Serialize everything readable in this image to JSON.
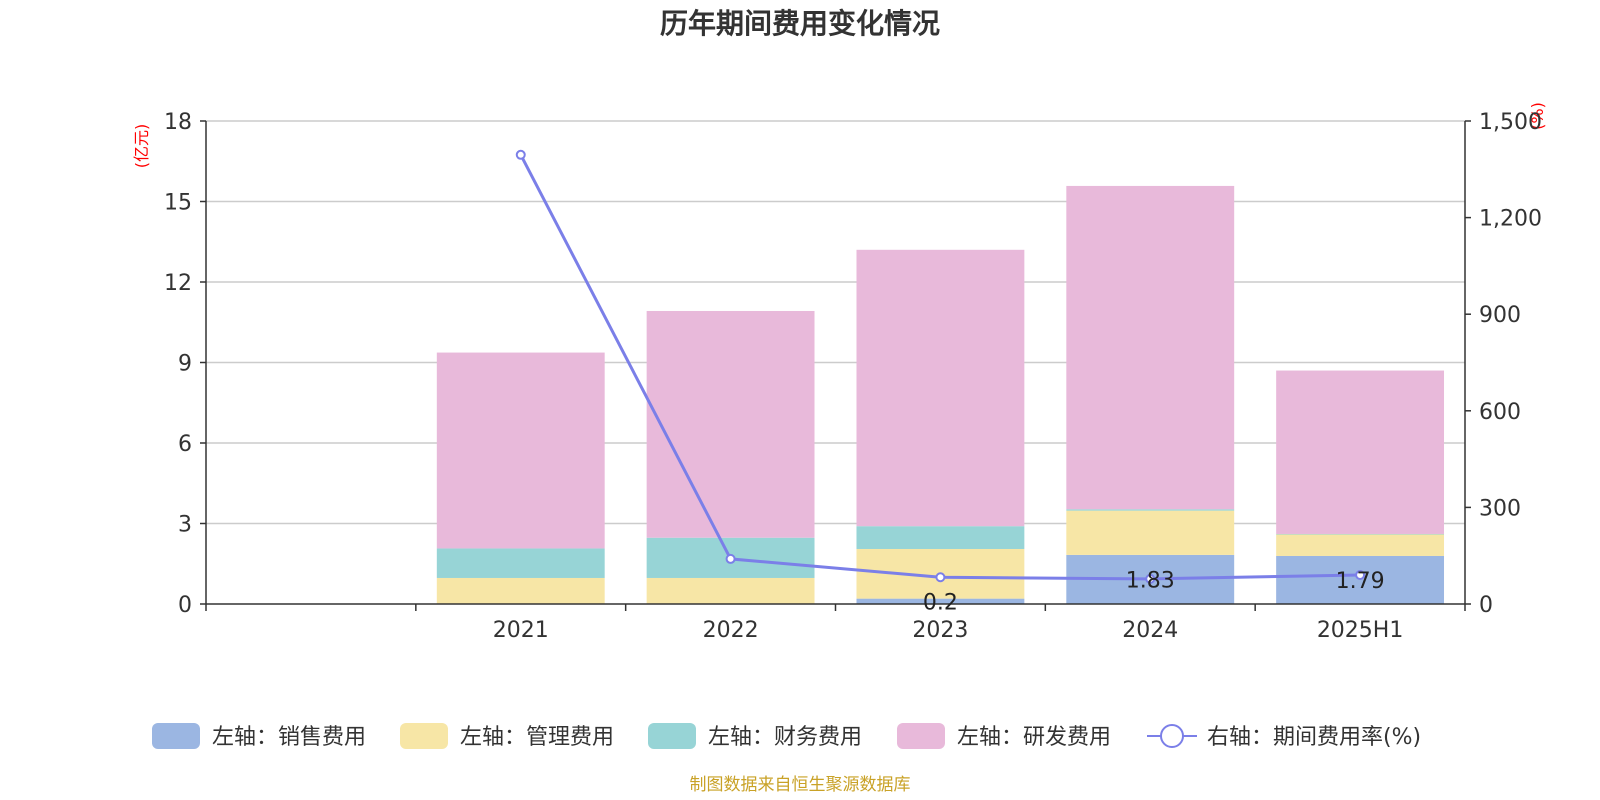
{
  "chart_data": {
    "type": "bar",
    "title": "历年期间费用变化情况",
    "categories": [
      "",
      "2021",
      "2022",
      "2023",
      "2024",
      "2025H1"
    ],
    "y_left": {
      "unit": "(亿元)",
      "range": [
        0,
        18
      ],
      "ticks": [
        "0",
        "3",
        "6",
        "9",
        "12",
        "15",
        "18"
      ]
    },
    "y_right": {
      "unit": "(%)",
      "range": [
        0,
        1500
      ],
      "ticks": [
        "0",
        "300",
        "600",
        "900",
        "1,200",
        "1,500"
      ]
    },
    "series": [
      {
        "name": "左轴：销售费用",
        "type": "bar",
        "axis": "left",
        "color": "#9bb6e2",
        "values": [
          0,
          0.02,
          0.02,
          0.2,
          1.83,
          1.79
        ],
        "labels": [
          "",
          "",
          "",
          "0.2",
          "1.83",
          "1.79"
        ]
      },
      {
        "name": "左轴：管理费用",
        "type": "bar",
        "axis": "left",
        "color": "#f7e6a6",
        "values": [
          0,
          0.95,
          0.95,
          1.85,
          1.65,
          0.8
        ],
        "labels": [
          "",
          "",
          "",
          "",
          "",
          ""
        ]
      },
      {
        "name": "左轴：财务费用",
        "type": "bar",
        "axis": "left",
        "color": "#97d4d6",
        "values": [
          0,
          1.1,
          1.5,
          0.85,
          0.05,
          0.02
        ],
        "labels": [
          "",
          "",
          "",
          "",
          "",
          ""
        ]
      },
      {
        "name": "左轴：研发费用",
        "type": "bar",
        "axis": "left",
        "color": "#e8b9da",
        "values": [
          0,
          7.3,
          8.45,
          10.3,
          12.05,
          6.09
        ],
        "labels": [
          "",
          "",
          "",
          "",
          "",
          ""
        ]
      },
      {
        "name": "右轴：期间费用率(%)",
        "type": "line",
        "axis": "right",
        "color": "#7b7fe8",
        "values": [
          null,
          1395,
          140,
          83,
          78,
          90
        ]
      }
    ],
    "grid": true,
    "legend_position": "bottom",
    "source": "制图数据来自恒生聚源数据库"
  }
}
